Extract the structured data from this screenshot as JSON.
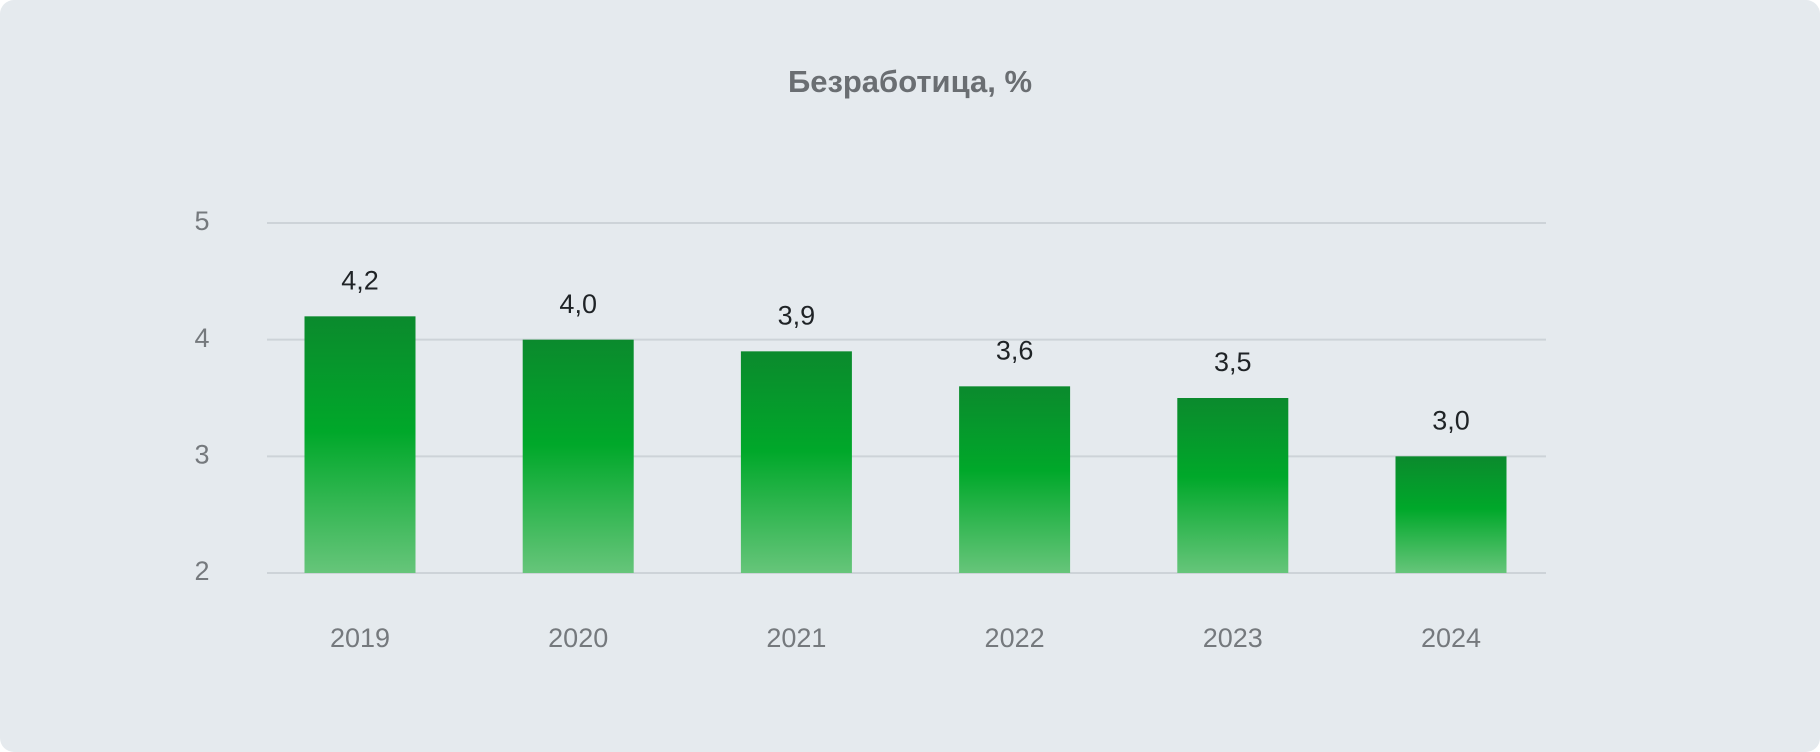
{
  "chart_data": {
    "type": "bar",
    "title": "Безработица, %",
    "categories": [
      "2019",
      "2020",
      "2021",
      "2022",
      "2023",
      "2024"
    ],
    "values": [
      4.2,
      4.0,
      3.9,
      3.6,
      3.5,
      3.0
    ],
    "value_labels": [
      "4,2",
      "4,0",
      "3,9",
      "3,6",
      "3,5",
      "3,0"
    ],
    "color": "#00a82a",
    "ylim": [
      2,
      5
    ],
    "yticks": [
      2,
      3,
      4,
      5
    ],
    "grid": true
  }
}
